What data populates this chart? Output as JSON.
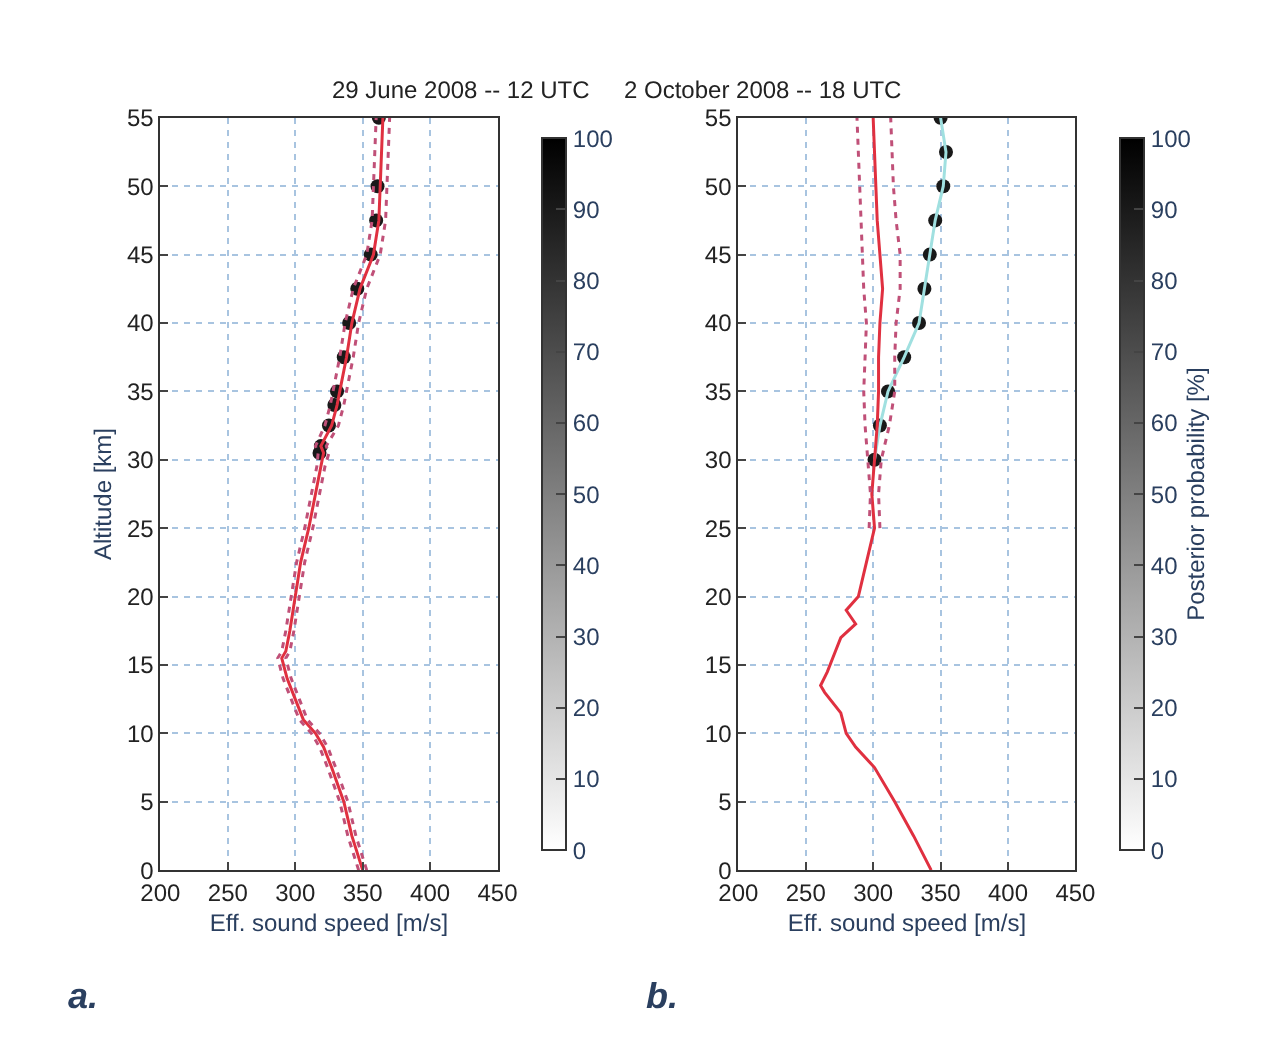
{
  "chart_data": [
    {
      "type": "line",
      "title": "29 June 2008 -- 12 UTC",
      "xlabel": "Eff. sound speed [m/s]",
      "ylabel": "Altitude [km]",
      "xlim": [
        200,
        450
      ],
      "ylim": [
        0,
        55
      ],
      "xticks": [
        200,
        250,
        300,
        350,
        400,
        450
      ],
      "yticks": [
        0,
        5,
        10,
        15,
        20,
        25,
        30,
        35,
        40,
        45,
        50,
        55
      ],
      "grid": true,
      "clim": [
        0,
        100
      ],
      "cticks": [
        0,
        10,
        20,
        30,
        40,
        50,
        60,
        70,
        80,
        90,
        100
      ],
      "annotations": [
        "a."
      ],
      "series": [
        {
          "type": "scatter",
          "marker": "circle",
          "x": [
            318,
            319,
            325,
            329,
            331,
            336,
            340,
            346,
            356,
            360,
            361,
            362
          ],
          "values": [
            30.5,
            31,
            32.5,
            34,
            35,
            37.5,
            40,
            42.5,
            45,
            47.5,
            50,
            55
          ],
          "cvalues": [
            90,
            90,
            90,
            90,
            90,
            90,
            90,
            90,
            90,
            90,
            90,
            90
          ]
        },
        {
          "line_style": "solid",
          "color": "#e03040",
          "x": [
            350,
            342,
            336,
            327,
            321,
            315,
            306,
            300,
            294,
            290,
            293,
            296,
            300,
            304,
            310,
            315,
            319,
            321,
            319,
            327,
            331,
            333,
            338,
            342,
            348,
            358,
            362,
            363,
            365
          ],
          "values": [
            0,
            2.5,
            5,
            7.5,
            9,
            10,
            11,
            12.5,
            14,
            15.5,
            16,
            17.5,
            20,
            22.5,
            25,
            27.5,
            29.5,
            30.5,
            31,
            32.5,
            34,
            35,
            37.5,
            40,
            42.5,
            45,
            47.5,
            50,
            55
          ]
        },
        {
          "line_style": "dotted",
          "color": "#c05078",
          "x": [
            347,
            339,
            333,
            324,
            318,
            312,
            303,
            297,
            291,
            287,
            290,
            293,
            297,
            301,
            307,
            312,
            316,
            317,
            315,
            322,
            326,
            328,
            333,
            337,
            343,
            353,
            357,
            358,
            360
          ],
          "values": [
            0,
            2.5,
            5,
            7.5,
            9,
            10,
            11,
            12.5,
            14,
            15.5,
            16,
            17.5,
            20,
            22.5,
            25,
            27.5,
            29.5,
            30.5,
            31,
            32.5,
            34,
            35,
            37.5,
            40,
            42.5,
            45,
            47.5,
            50,
            55
          ]
        },
        {
          "line_style": "dotted",
          "color": "#c05078",
          "x": [
            353,
            345,
            339,
            330,
            324,
            318,
            309,
            303,
            297,
            293,
            296,
            299,
            303,
            307,
            313,
            318,
            322,
            325,
            323,
            332,
            336,
            338,
            343,
            347,
            353,
            363,
            367,
            368,
            370
          ],
          "values": [
            0,
            2.5,
            5,
            7.5,
            9,
            10,
            11,
            12.5,
            14,
            15.5,
            16,
            17.5,
            20,
            22.5,
            25,
            27.5,
            29.5,
            30.5,
            31,
            32.5,
            34,
            35,
            37.5,
            40,
            42.5,
            45,
            47.5,
            50,
            55
          ]
        }
      ]
    },
    {
      "type": "line",
      "title": "2 October 2008 -- 18 UTC",
      "xlabel": "Eff. sound speed [m/s]",
      "clabel": "Posterior probability [%]",
      "xlim": [
        200,
        450
      ],
      "ylim": [
        0,
        55
      ],
      "xticks": [
        200,
        250,
        300,
        350,
        400,
        450
      ],
      "yticks": [
        0,
        5,
        10,
        15,
        20,
        25,
        30,
        35,
        40,
        45,
        50,
        55
      ],
      "grid": true,
      "clim": [
        0,
        100
      ],
      "cticks": [
        0,
        10,
        20,
        30,
        40,
        50,
        60,
        70,
        80,
        90,
        100
      ],
      "annotations": [
        "b."
      ],
      "series": [
        {
          "type": "scatter",
          "marker": "circle",
          "x": [
            301,
            305,
            311,
            323,
            334,
            338,
            342,
            346,
            352,
            354,
            350
          ],
          "values": [
            30,
            32.5,
            35,
            37.5,
            40,
            42.5,
            45,
            47.5,
            50,
            52.5,
            55
          ],
          "cvalues": [
            90,
            90,
            90,
            90,
            90,
            90,
            90,
            90,
            90,
            90,
            90
          ]
        },
        {
          "line_style": "solid",
          "color": "#a0e0e0",
          "x": [
            301,
            305,
            311,
            323,
            334,
            338,
            342,
            346,
            352,
            354,
            350
          ],
          "values": [
            30,
            32.5,
            35,
            37.5,
            40,
            42.5,
            45,
            47.5,
            50,
            52.5,
            55
          ]
        },
        {
          "line_style": "solid",
          "color": "#e03040",
          "x": [
            343,
            330,
            316,
            301,
            287,
            280,
            276,
            264,
            261,
            266,
            272,
            276,
            287,
            280,
            289,
            295,
            301,
            299,
            301,
            303,
            304,
            304,
            305,
            307,
            305,
            303,
            302,
            300
          ],
          "values": [
            0,
            2.5,
            5,
            7.5,
            9,
            10,
            11.5,
            13,
            13.5,
            14.5,
            16,
            17,
            18,
            19,
            20,
            22.5,
            25,
            27.5,
            30,
            32.5,
            35,
            37.5,
            40,
            42.5,
            45,
            47.5,
            50,
            55
          ]
        },
        {
          "line_style": "dotted",
          "color": "#c05078",
          "x": [
            297,
            298,
            296,
            294,
            293,
            294,
            295,
            293,
            292,
            291,
            290,
            288
          ],
          "values": [
            25,
            27.5,
            30,
            32.5,
            35,
            37.5,
            40,
            42.5,
            45,
            47.5,
            50,
            55
          ]
        },
        {
          "line_style": "dotted",
          "color": "#c05078",
          "x": [
            305,
            304,
            306,
            312,
            316,
            316,
            317,
            320,
            320,
            317,
            315,
            313
          ],
          "values": [
            25,
            27.5,
            30,
            32.5,
            35,
            37.5,
            40,
            42.5,
            45,
            47.5,
            50,
            55
          ]
        }
      ]
    }
  ]
}
